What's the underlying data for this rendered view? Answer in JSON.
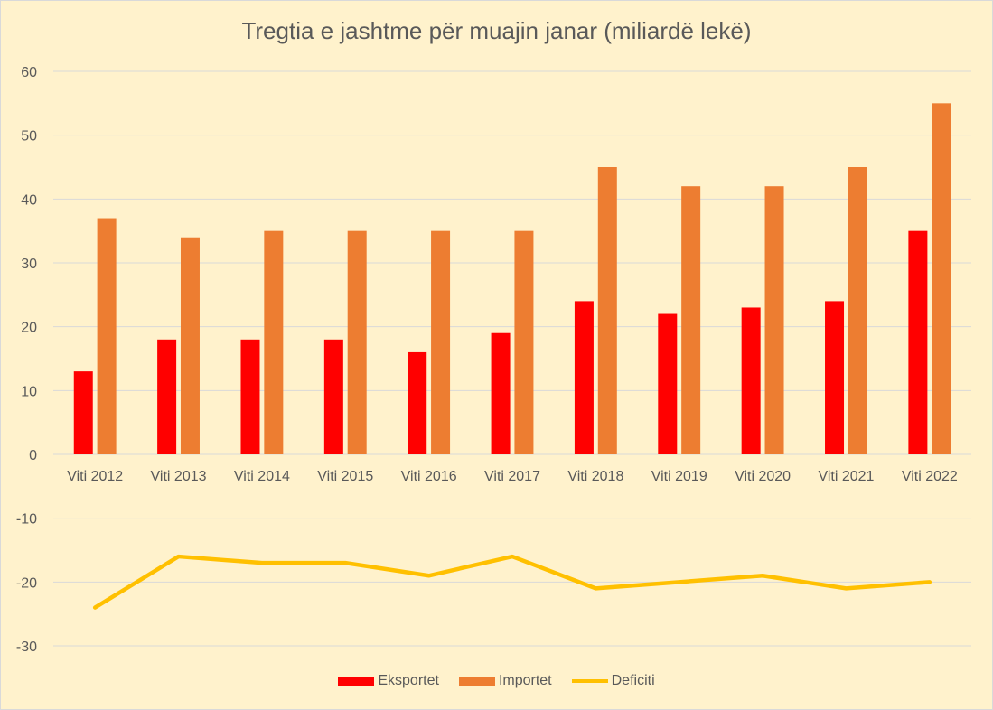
{
  "chart_data": {
    "type": "bar",
    "title": "Tregtia e jashtme për muajin janar (miliardë lekë)",
    "categories": [
      "Viti 2012",
      "Viti 2013",
      "Viti 2014",
      "Viti 2015",
      "Viti 2016",
      "Viti 2017",
      "Viti 2018",
      "Viti 2019",
      "Viti 2020",
      "Viti 2021",
      "Viti 2022"
    ],
    "series": [
      {
        "name": "Eksportet",
        "kind": "bar",
        "color": "#ff0000",
        "values": [
          13,
          18,
          18,
          18,
          16,
          19,
          24,
          22,
          23,
          24,
          35
        ]
      },
      {
        "name": "Importet",
        "kind": "bar",
        "color": "#ed7d31",
        "values": [
          37,
          34,
          35,
          35,
          35,
          35,
          45,
          42,
          42,
          45,
          55
        ]
      },
      {
        "name": "Deficiti",
        "kind": "line",
        "color": "#ffc000",
        "values": [
          -24,
          -16,
          -17,
          -17,
          -19,
          -16,
          -21,
          -20,
          -19,
          -21,
          -20
        ]
      }
    ],
    "ylim": [
      -30,
      60
    ],
    "yticks": [
      60,
      50,
      40,
      30,
      20,
      10,
      0,
      -10,
      -20,
      -30
    ],
    "grid": true,
    "legend_position": "bottom",
    "background_color": "#fff2cc",
    "gridline_color": "#d9d9d9"
  }
}
